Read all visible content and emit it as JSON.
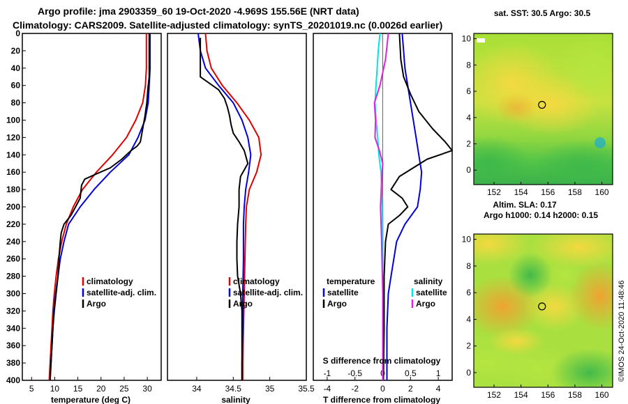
{
  "header": {
    "title_line1": "Argo profile: jma 2903359_60 19-Oct-2020 -4.969S 155.56E (NRT data)",
    "title_line2": "Climatology: CARS2009. Satellite-adjusted climatology: synTS_20201019.nc (0.0026d earlier)"
  },
  "footer": {
    "credit": "©IMOS 24-Oct-2020 11:48:46"
  },
  "colors": {
    "red": "#e00000",
    "blue": "#0000dd",
    "black": "#000000",
    "cyan": "#00e5e5",
    "magenta": "#e020e0"
  },
  "chart_data": [
    {
      "id": "temperature",
      "type": "line",
      "xlabel": "temperature (deg C)",
      "ylabel": "",
      "xlim": [
        3,
        33
      ],
      "ylim": [
        400,
        0
      ],
      "xticks": [
        5,
        10,
        15,
        20,
        25,
        30
      ],
      "yticks": [
        0,
        20,
        40,
        60,
        80,
        100,
        120,
        140,
        160,
        180,
        200,
        220,
        240,
        260,
        280,
        300,
        320,
        340,
        360,
        380,
        400
      ],
      "legend": [
        "climatology",
        "satellite-adj. clim.",
        "Argo"
      ],
      "series": [
        {
          "name": "climatology",
          "color": "red",
          "points": [
            [
              29.8,
              0
            ],
            [
              29.8,
              40
            ],
            [
              29.6,
              60
            ],
            [
              29.0,
              80
            ],
            [
              27.5,
              100
            ],
            [
              25.5,
              120
            ],
            [
              22.5,
              140
            ],
            [
              19,
              160
            ],
            [
              16,
              180
            ],
            [
              14,
              200
            ],
            [
              12.5,
              220
            ],
            [
              11.5,
              240
            ],
            [
              10.8,
              260
            ],
            [
              10.3,
              280
            ],
            [
              9.9,
              300
            ],
            [
              9.6,
              320
            ],
            [
              9.4,
              340
            ],
            [
              9.2,
              360
            ],
            [
              9.0,
              380
            ],
            [
              8.8,
              400
            ]
          ]
        },
        {
          "name": "satellite-adj. clim.",
          "color": "blue",
          "points": [
            [
              30.6,
              0
            ],
            [
              30.6,
              40
            ],
            [
              30.4,
              60
            ],
            [
              30.2,
              80
            ],
            [
              29.5,
              100
            ],
            [
              28,
              120
            ],
            [
              26,
              140
            ],
            [
              22,
              160
            ],
            [
              18.5,
              180
            ],
            [
              15.5,
              200
            ],
            [
              13,
              220
            ],
            [
              12,
              240
            ],
            [
              11.2,
              260
            ],
            [
              10.7,
              280
            ],
            [
              10.2,
              300
            ],
            [
              9.8,
              320
            ],
            [
              9.6,
              340
            ],
            [
              9.4,
              360
            ],
            [
              9.2,
              380
            ],
            [
              9.0,
              400
            ]
          ]
        },
        {
          "name": "Argo",
          "color": "black",
          "points": [
            [
              30.4,
              0
            ],
            [
              30.4,
              50
            ],
            [
              30.1,
              65
            ],
            [
              29.9,
              80
            ],
            [
              29.5,
              95
            ],
            [
              29.0,
              110
            ],
            [
              28.5,
              125
            ],
            [
              27.8,
              130
            ],
            [
              26.5,
              135
            ],
            [
              24.5,
              145
            ],
            [
              22,
              155
            ],
            [
              19,
              162
            ],
            [
              16.5,
              168
            ],
            [
              15.8,
              175
            ],
            [
              15.5,
              190
            ],
            [
              14.5,
              200
            ],
            [
              13.5,
              210
            ],
            [
              12,
              220
            ],
            [
              11.4,
              230
            ],
            [
              11.2,
              240
            ],
            [
              10.9,
              260
            ],
            [
              10.7,
              280
            ],
            [
              10.3,
              300
            ],
            [
              9.9,
              320
            ],
            [
              9.6,
              340
            ],
            [
              9.4,
              360
            ],
            [
              9.2,
              380
            ],
            [
              9.0,
              400
            ]
          ]
        }
      ]
    },
    {
      "id": "salinity",
      "type": "line",
      "xlabel": "salinity",
      "xlim": [
        33.6,
        35.5
      ],
      "ylim": [
        400,
        0
      ],
      "xticks": [
        34,
        34.5,
        35,
        35.5
      ],
      "legend": [
        "climatology",
        "satellite-adj. clim.",
        "Argo"
      ],
      "series": [
        {
          "name": "climatology",
          "color": "red",
          "points": [
            [
              34.12,
              0
            ],
            [
              34.14,
              20
            ],
            [
              34.2,
              40
            ],
            [
              34.35,
              60
            ],
            [
              34.55,
              80
            ],
            [
              34.72,
              100
            ],
            [
              34.85,
              120
            ],
            [
              34.88,
              140
            ],
            [
              34.82,
              160
            ],
            [
              34.72,
              180
            ],
            [
              34.68,
              200
            ],
            [
              34.67,
              220
            ],
            [
              34.66,
              260
            ],
            [
              34.65,
              300
            ],
            [
              34.64,
              340
            ],
            [
              34.63,
              380
            ],
            [
              34.63,
              400
            ]
          ]
        },
        {
          "name": "satellite-adj. clim.",
          "color": "blue",
          "points": [
            [
              34.02,
              0
            ],
            [
              34.05,
              20
            ],
            [
              34.12,
              40
            ],
            [
              34.3,
              60
            ],
            [
              34.5,
              80
            ],
            [
              34.62,
              100
            ],
            [
              34.7,
              120
            ],
            [
              34.74,
              140
            ],
            [
              34.71,
              160
            ],
            [
              34.67,
              180
            ],
            [
              34.65,
              200
            ],
            [
              34.64,
              220
            ],
            [
              34.64,
              260
            ],
            [
              34.63,
              300
            ],
            [
              34.63,
              340
            ],
            [
              34.62,
              380
            ],
            [
              34.62,
              400
            ]
          ]
        },
        {
          "name": "Argo",
          "color": "black",
          "points": [
            [
              34.05,
              5
            ],
            [
              34.05,
              30
            ],
            [
              34.05,
              50
            ],
            [
              34.3,
              65
            ],
            [
              34.38,
              75
            ],
            [
              34.42,
              85
            ],
            [
              34.45,
              95
            ],
            [
              34.47,
              105
            ],
            [
              34.5,
              115
            ],
            [
              34.58,
              125
            ],
            [
              34.65,
              135
            ],
            [
              34.7,
              150
            ],
            [
              34.6,
              165
            ],
            [
              34.58,
              180
            ],
            [
              34.58,
              200
            ],
            [
              34.56,
              220
            ],
            [
              34.55,
              240
            ],
            [
              34.55,
              260
            ],
            [
              34.56,
              280
            ],
            [
              34.6,
              300
            ],
            [
              34.62,
              320
            ],
            [
              34.62,
              340
            ],
            [
              34.62,
              360
            ],
            [
              34.62,
              380
            ],
            [
              34.62,
              400
            ]
          ]
        }
      ]
    },
    {
      "id": "difference",
      "type": "line",
      "xlabel": "T difference from climatology",
      "xlabel_top": "S difference from climatology",
      "xlim": [
        -5,
        5
      ],
      "ylim": [
        400,
        0
      ],
      "xticks": [
        -4,
        -2,
        0,
        2,
        4
      ],
      "xticks_s": [
        -1,
        -0.5,
        0,
        0.5,
        1
      ],
      "s_scale": 2.5,
      "legend_left_title": "temperature",
      "legend_right_title": "salinity",
      "legend": [
        "satellite",
        "Argo",
        "satellite",
        "Argo"
      ],
      "series": [
        {
          "name": "T satellite",
          "color": "blue",
          "axis": "T",
          "points": [
            [
              1.4,
              0
            ],
            [
              1.5,
              20
            ],
            [
              1.6,
              40
            ],
            [
              1.8,
              60
            ],
            [
              2.0,
              80
            ],
            [
              2.2,
              100
            ],
            [
              2.4,
              120
            ],
            [
              2.6,
              140
            ],
            [
              2.8,
              160
            ],
            [
              2.7,
              180
            ],
            [
              2.5,
              200
            ],
            [
              1.6,
              220
            ],
            [
              1.0,
              240
            ],
            [
              0.8,
              260
            ],
            [
              0.6,
              280
            ],
            [
              0.4,
              300
            ],
            [
              0.3,
              340
            ],
            [
              0.3,
              400
            ]
          ]
        },
        {
          "name": "T Argo",
          "color": "black",
          "axis": "T",
          "points": [
            [
              1.2,
              0
            ],
            [
              1.3,
              30
            ],
            [
              1.5,
              50
            ],
            [
              2.0,
              70
            ],
            [
              2.6,
              90
            ],
            [
              3.6,
              110
            ],
            [
              4.5,
              125
            ],
            [
              5.0,
              135
            ],
            [
              3.2,
              145
            ],
            [
              1.2,
              165
            ],
            [
              0.6,
              180
            ],
            [
              1.4,
              190
            ],
            [
              1.8,
              200
            ],
            [
              1.2,
              210
            ],
            [
              0.4,
              220
            ],
            [
              0.2,
              240
            ],
            [
              0.1,
              280
            ],
            [
              0.1,
              340
            ],
            [
              0.05,
              400
            ]
          ]
        },
        {
          "name": "S satellite",
          "color": "cyan",
          "axis": "S",
          "points": [
            [
              -0.05,
              0
            ],
            [
              -0.08,
              20
            ],
            [
              -0.1,
              40
            ],
            [
              -0.12,
              60
            ],
            [
              -0.14,
              80
            ],
            [
              -0.12,
              100
            ],
            [
              -0.09,
              120
            ],
            [
              -0.07,
              140
            ],
            [
              -0.03,
              160
            ],
            [
              -0.01,
              200
            ],
            [
              0.0,
              240
            ],
            [
              0.0,
              300
            ],
            [
              0.0,
              400
            ]
          ]
        },
        {
          "name": "S Argo",
          "color": "magenta",
          "axis": "S",
          "points": [
            [
              0.1,
              0
            ],
            [
              0.05,
              30
            ],
            [
              -0.05,
              60
            ],
            [
              -0.15,
              80
            ],
            [
              -0.13,
              100
            ],
            [
              -0.14,
              120
            ],
            [
              -0.06,
              135
            ],
            [
              0.0,
              150
            ],
            [
              -0.02,
              170
            ],
            [
              -0.04,
              200
            ],
            [
              -0.02,
              240
            ],
            [
              0.0,
              300
            ],
            [
              0.0,
              400
            ]
          ]
        }
      ]
    },
    {
      "id": "sst_map",
      "type": "heatmap",
      "title": "sat. SST: 30.5 Argo: 30.5",
      "xlim": [
        150.5,
        160.8
      ],
      "ylim": [
        -1.1,
        10.4
      ],
      "xticks": [
        152,
        154,
        156,
        158,
        160
      ],
      "yticks": [
        0,
        2,
        4,
        6,
        8,
        10
      ],
      "marker": [
        155.56,
        4.969
      ]
    },
    {
      "id": "sla_map",
      "type": "heatmap",
      "title": "Altim. SLA: 0.17",
      "subtitle": "Argo h1000: 0.14 h2000: 0.15",
      "xlim": [
        150.5,
        160.8
      ],
      "ylim": [
        -1.1,
        10.4
      ],
      "xticks": [
        152,
        154,
        156,
        158,
        160
      ],
      "yticks": [
        0,
        2,
        4,
        6,
        8,
        10
      ],
      "marker": [
        155.56,
        4.969
      ]
    }
  ]
}
